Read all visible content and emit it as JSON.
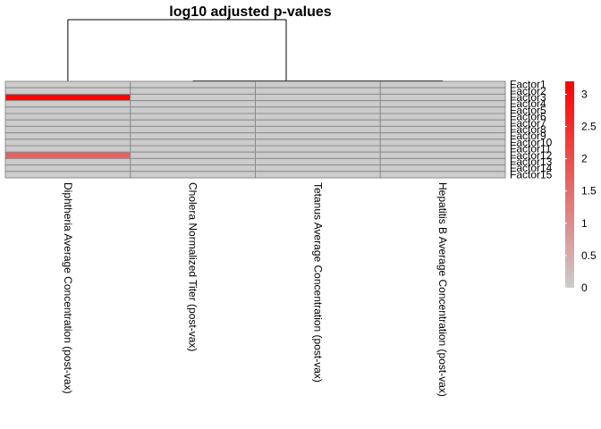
{
  "chart_data": {
    "type": "heatmap",
    "title": "log10 adjusted p-values",
    "rows": [
      "Factor1",
      "Factor2",
      "Factor3",
      "Factor4",
      "Factor5",
      "Factor6",
      "Factor7",
      "Factor8",
      "Factor9",
      "Factor10",
      "Factor11",
      "Factor12",
      "Factor13",
      "Factor14",
      "Factor15"
    ],
    "columns": [
      "Diphtheria Average Concentration (post-vax)",
      "Cholera Normalized Titer (post-vax)",
      "Tetanus Average Concentration (post-vax)",
      "Hepatitis B Average Concentration (post-vax)"
    ],
    "values": [
      [
        0,
        0,
        0,
        0
      ],
      [
        0,
        0,
        0,
        0
      ],
      [
        3.2,
        0,
        0,
        0
      ],
      [
        0,
        0,
        0,
        0
      ],
      [
        0,
        0,
        0,
        0
      ],
      [
        0,
        0,
        0,
        0
      ],
      [
        0,
        0,
        0,
        0
      ],
      [
        0,
        0,
        0,
        0
      ],
      [
        0,
        0,
        0,
        0
      ],
      [
        0,
        0,
        0,
        0
      ],
      [
        0,
        0,
        0,
        0
      ],
      [
        1.7,
        0,
        0,
        0
      ],
      [
        0,
        0,
        0,
        0
      ],
      [
        0,
        0,
        0,
        0
      ],
      [
        0,
        0,
        0,
        0
      ]
    ],
    "color_scale": {
      "min": 0,
      "max": 3.2,
      "low_color": "#cccccc",
      "high_color": "#ff0000"
    },
    "legend": {
      "placement": "right",
      "ticks": [
        "0",
        "0.5",
        "1",
        "1.5",
        "2",
        "2.5",
        "3"
      ],
      "tick_values": [
        0,
        0.5,
        1,
        1.5,
        2,
        2.5,
        3
      ]
    },
    "column_dendrogram": true
  }
}
